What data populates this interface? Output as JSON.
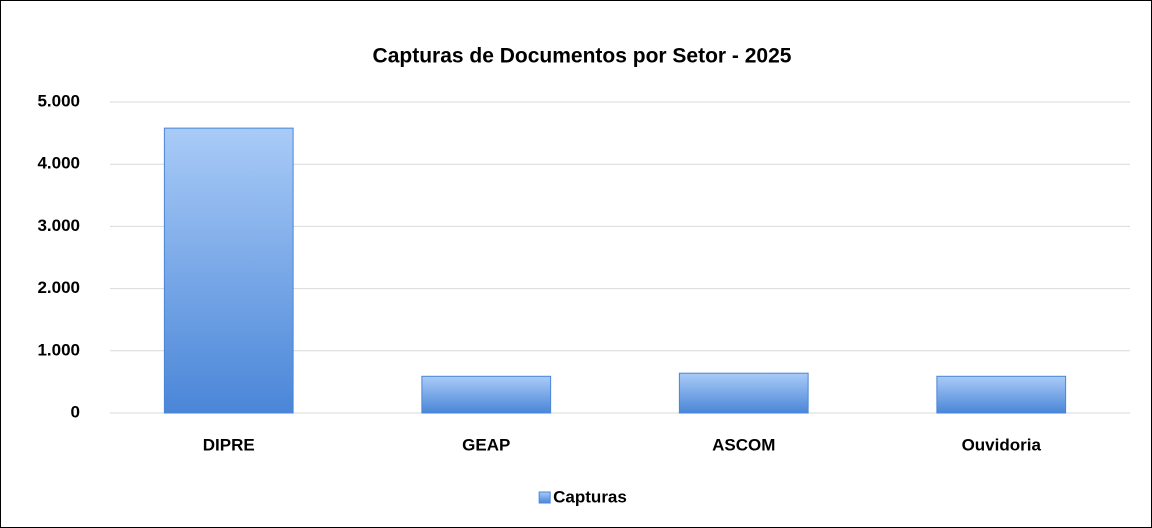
{
  "chart_data": {
    "type": "bar",
    "title": "Capturas de Documentos por Setor - 2025",
    "categories": [
      "DIPRE",
      "GEAP",
      "ASCOM",
      "Ouvidoria"
    ],
    "series": [
      {
        "name": "Capturas",
        "color": "#4a86d8",
        "values": [
          4580,
          590,
          640,
          590
        ]
      }
    ],
    "ylim": [
      0,
      5000
    ],
    "yticks": [
      0,
      {
        "value": 1000,
        "label": "1.000"
      },
      {
        "value": 2000,
        "label": "2.000"
      },
      {
        "value": 3000,
        "label": "3.000"
      },
      {
        "value": 4000,
        "label": "4.000"
      },
      {
        "value": 5000,
        "label": "5.000"
      }
    ],
    "grid": true,
    "legend": "bottom"
  }
}
